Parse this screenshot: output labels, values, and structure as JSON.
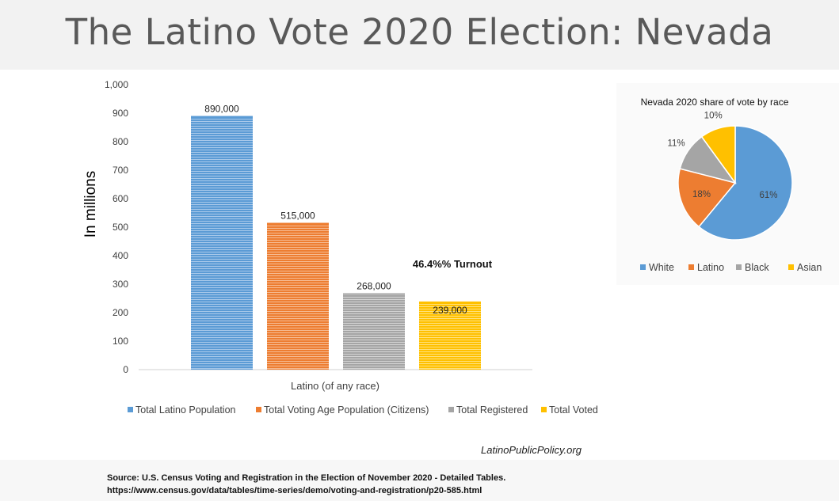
{
  "page": {
    "title": "The Latino Vote 2020 Election: Nevada",
    "website": "LatinoPublicPolicy.org",
    "source_line1": "Source: U.S. Census  Voting and Registration in the Election of November 2020 - Detailed Tables.",
    "source_line2": "https://www.census.gov/data/tables/time-series/demo/voting-and-registration/p20-585.html"
  },
  "chart_data": [
    {
      "type": "bar",
      "ylabel": "In millions",
      "ylim": [
        0,
        1000
      ],
      "yticks": [
        "0",
        "100",
        "200",
        "300",
        "400",
        "500",
        "600",
        "700",
        "800",
        "900",
        "1,000"
      ],
      "categories": [
        "Latino (of any race)"
      ],
      "series": [
        {
          "name": "Total Latino Population",
          "values": [
            890
          ],
          "data_label": "890,000",
          "color": "#5b9bd5"
        },
        {
          "name": "Total Voting Age Population (Citizens)",
          "values": [
            515
          ],
          "data_label": "515,000",
          "color": "#ed7d31"
        },
        {
          "name": "Total Registered",
          "values": [
            268
          ],
          "data_label": "268,000",
          "color": "#a5a5a5"
        },
        {
          "name": "Total Voted",
          "values": [
            239
          ],
          "data_label": "239,000",
          "color": "#ffc000"
        }
      ],
      "annotation": "46.4%% Turnout",
      "legend": "bottom",
      "grid": false
    },
    {
      "type": "pie",
      "title": "Nevada 2020 share of vote by race",
      "slices": [
        {
          "name": "White",
          "value": 61,
          "label": "61%",
          "color": "#5b9bd5"
        },
        {
          "name": "Latino",
          "value": 18,
          "label": "18%",
          "color": "#ed7d31"
        },
        {
          "name": "Black",
          "value": 11,
          "label": "11%",
          "color": "#a5a5a5"
        },
        {
          "name": "Asian",
          "value": 10,
          "label": "10%",
          "color": "#ffc000"
        }
      ],
      "legend": "bottom"
    }
  ]
}
